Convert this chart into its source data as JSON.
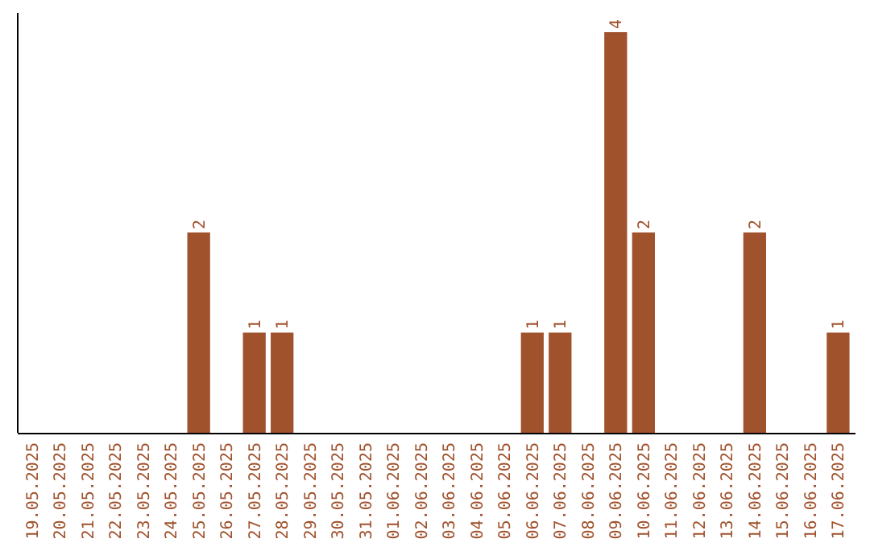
{
  "chart_data": {
    "type": "bar",
    "color": "#a0522d",
    "categories": [
      "19.05.2025",
      "20.05.2025",
      "21.05.2025",
      "22.05.2025",
      "23.05.2025",
      "24.05.2025",
      "25.05.2025",
      "26.05.2025",
      "27.05.2025",
      "28.05.2025",
      "29.05.2025",
      "30.05.2025",
      "31.05.2025",
      "01.06.2025",
      "02.06.2025",
      "03.06.2025",
      "04.06.2025",
      "05.06.2025",
      "06.06.2025",
      "07.06.2025",
      "08.06.2025",
      "09.06.2025",
      "10.06.2025",
      "11.06.2025",
      "12.06.2025",
      "13.06.2025",
      "14.06.2025",
      "15.06.2025",
      "16.06.2025",
      "17.06.2025"
    ],
    "values": [
      0,
      0,
      0,
      0,
      0,
      0,
      2,
      0,
      1,
      1,
      0,
      0,
      0,
      0,
      0,
      0,
      0,
      0,
      1,
      1,
      0,
      4,
      2,
      0,
      0,
      0,
      2,
      0,
      0,
      1
    ],
    "value_labels": [
      null,
      null,
      null,
      null,
      null,
      null,
      "2",
      null,
      "1",
      "1",
      null,
      null,
      null,
      null,
      null,
      null,
      null,
      null,
      "1",
      "1",
      null,
      "4",
      "2",
      null,
      null,
      null,
      "2",
      null,
      null,
      "1"
    ]
  }
}
